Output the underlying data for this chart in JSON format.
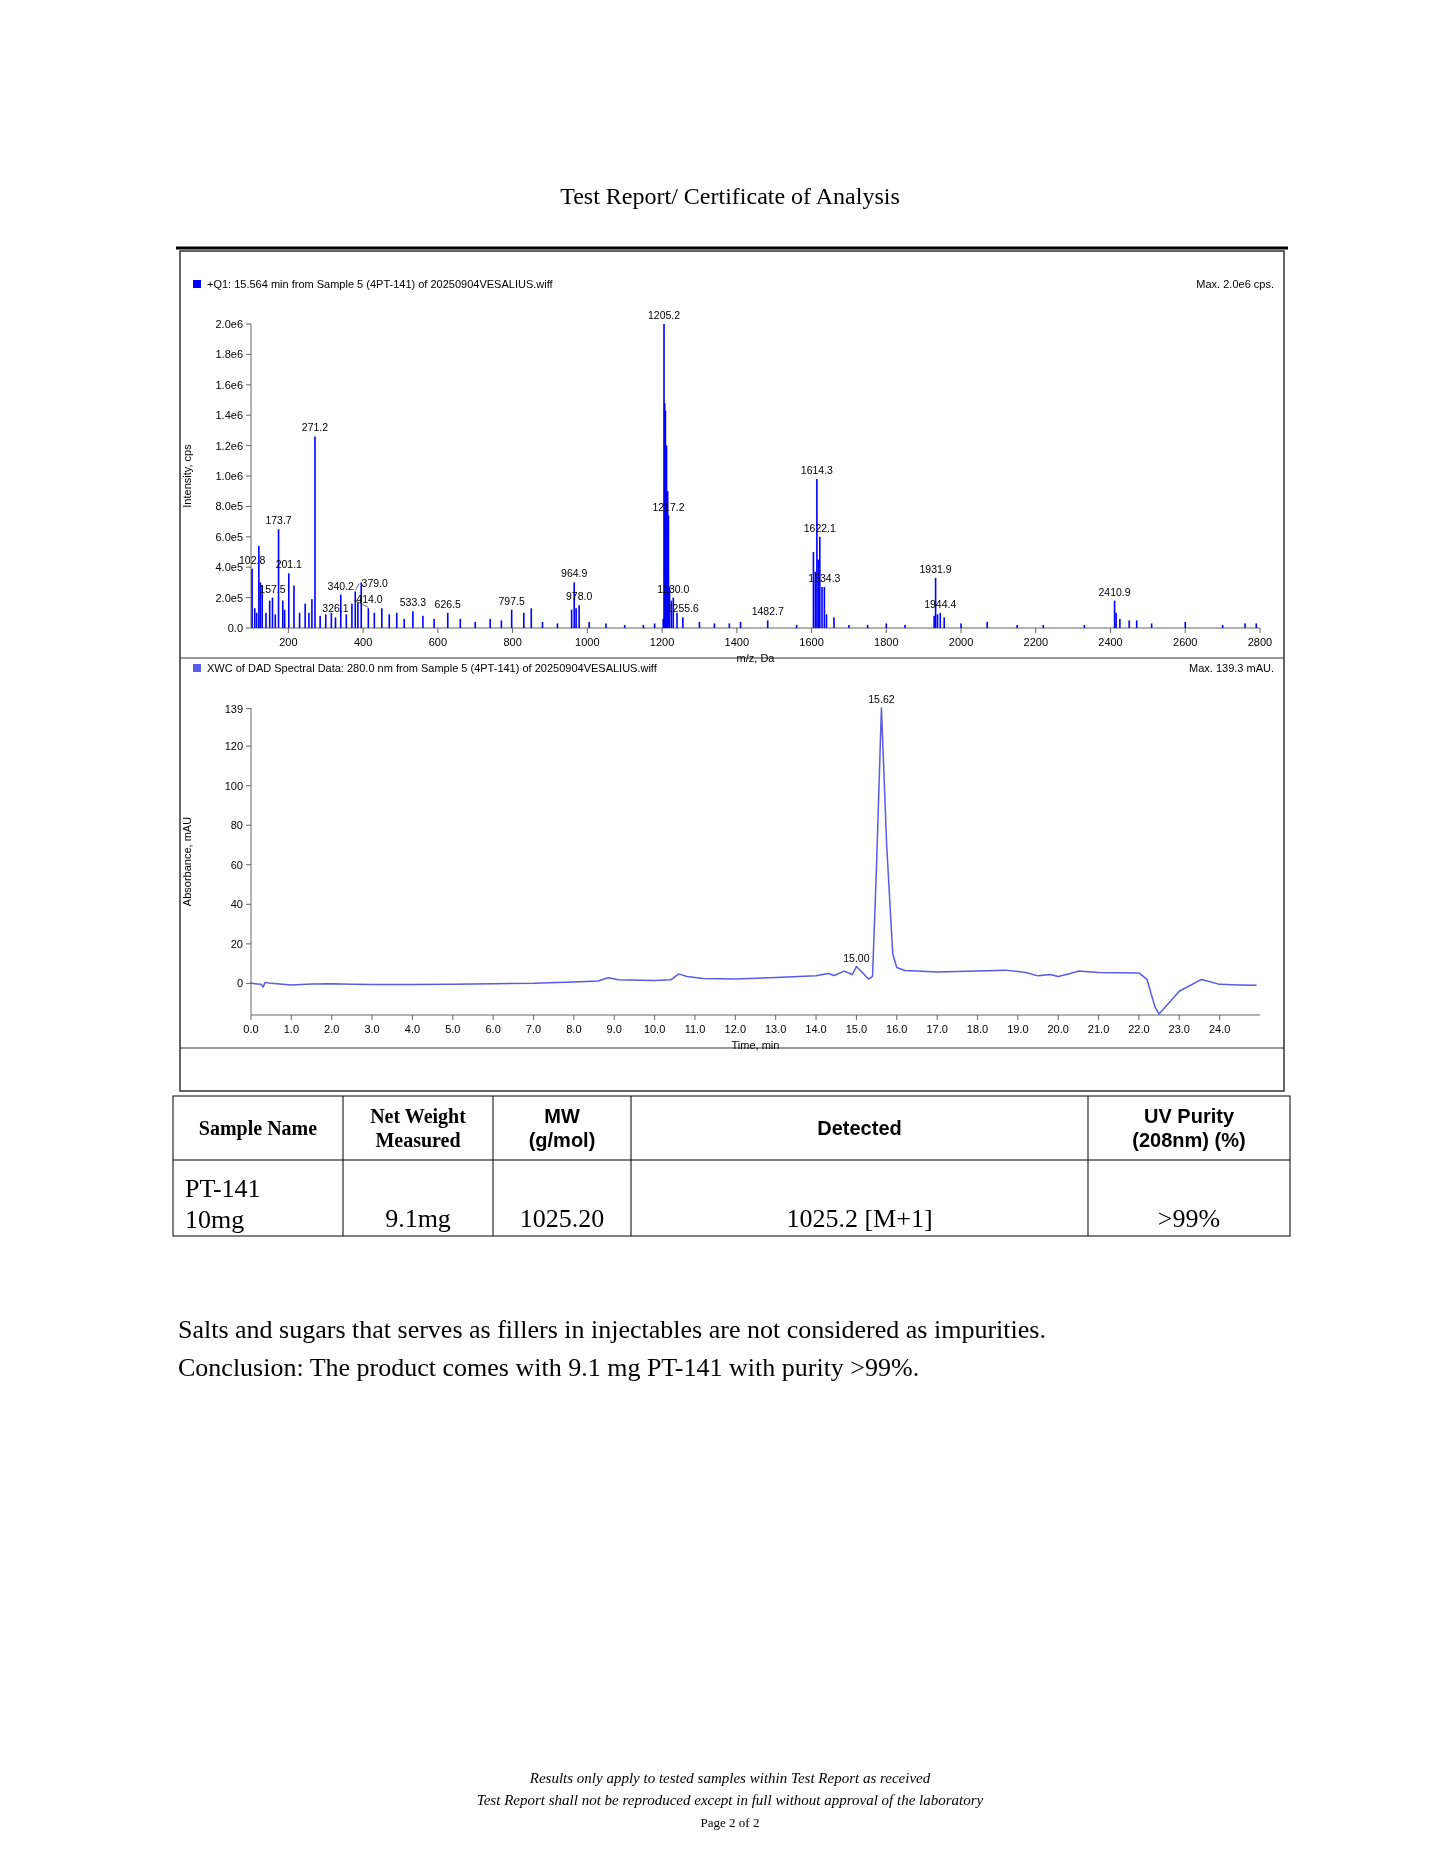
{
  "chart_data": [
    {
      "type": "bar",
      "title": "+Q1: 15.564 min from Sample 5 (4PT-141) of 20250904VESALIUS.wiff",
      "xlabel": "m/z, Da",
      "ylabel": "Intensity, cps",
      "color": "#0000ff",
      "x": [
        103,
        110,
        115,
        121,
        125,
        130,
        140,
        150,
        157.5,
        165,
        173.7,
        185,
        190,
        201.1,
        215,
        230,
        245,
        255,
        263,
        271.2,
        285,
        300,
        315,
        326.1,
        340.2,
        355,
        370,
        379,
        386,
        395,
        414,
        430,
        450,
        470,
        490,
        510,
        533.3,
        560,
        590,
        626.5,
        660,
        700,
        740,
        770,
        797.5,
        830,
        850,
        880,
        920,
        958,
        964.9,
        970,
        978,
        1005,
        1050,
        1100,
        1150,
        1180,
        1203,
        1205.2,
        1207,
        1209,
        1212,
        1215,
        1217.2,
        1220,
        1225,
        1230,
        1240,
        1255.6,
        1300,
        1340,
        1380,
        1410,
        1482.7,
        1560,
        1605,
        1610,
        1614.3,
        1618,
        1622.1,
        1628,
        1634.3,
        1640,
        1660,
        1700,
        1750,
        1800,
        1850,
        1928,
        1931.9,
        1937,
        1944.4,
        1955,
        2000,
        2070,
        2150,
        2220,
        2330,
        2410.9,
        2415,
        2425,
        2450,
        2470,
        2510,
        2600,
        2700,
        2760,
        2790
      ],
      "values": [
        390000,
        130000,
        100000,
        540000,
        300000,
        280000,
        100000,
        180000,
        200000,
        90000,
        650000,
        180000,
        120000,
        360000,
        280000,
        100000,
        160000,
        100000,
        190000,
        1260000,
        80000,
        90000,
        100000,
        70000,
        220000,
        90000,
        160000,
        240000,
        170000,
        300000,
        130000,
        100000,
        130000,
        90000,
        100000,
        60000,
        110000,
        80000,
        60000,
        100000,
        60000,
        40000,
        60000,
        50000,
        120000,
        100000,
        130000,
        40000,
        30000,
        120000,
        300000,
        130000,
        150000,
        40000,
        30000,
        20000,
        20000,
        30000,
        60000,
        2000000,
        1480000,
        1430000,
        1200000,
        900000,
        740000,
        270000,
        180000,
        200000,
        100000,
        70000,
        40000,
        30000,
        30000,
        40000,
        50000,
        20000,
        500000,
        370000,
        980000,
        450000,
        600000,
        270000,
        270000,
        90000,
        70000,
        20000,
        20000,
        30000,
        20000,
        80000,
        330000,
        90000,
        100000,
        70000,
        30000,
        40000,
        20000,
        20000,
        20000,
        180000,
        100000,
        60000,
        50000,
        50000,
        30000,
        40000,
        20000,
        30000,
        30000
      ],
      "xlim": [
        100,
        2800
      ],
      "xticks": [
        200,
        400,
        600,
        800,
        1000,
        1200,
        1400,
        1600,
        1800,
        2000,
        2200,
        2400,
        2600,
        2800
      ],
      "ylim": [
        0,
        2000000
      ],
      "yticks": [
        {
          "value": 0,
          "label": "0.0"
        },
        {
          "value": 200000,
          "label": "2.0e5"
        },
        {
          "value": 400000,
          "label": "4.0e5"
        },
        {
          "value": 600000,
          "label": "6.0e5"
        },
        {
          "value": 800000,
          "label": "8.0e5"
        },
        {
          "value": 1000000,
          "label": "1.0e6"
        },
        {
          "value": 1200000,
          "label": "1.2e6"
        },
        {
          "value": 1400000,
          "label": "1.4e6"
        },
        {
          "value": 1600000,
          "label": "1.6e6"
        },
        {
          "value": 1800000,
          "label": "1.8e6"
        },
        {
          "value": 2000000,
          "label": "2.0e6"
        }
      ],
      "annotations": [
        "Max. 2.0e6 cps.",
        {
          "text": "102.8",
          "x": 103,
          "y": 390000
        },
        {
          "text": "157.5",
          "x": 157.5,
          "y": 200000
        },
        {
          "text": "173.7",
          "x": 173.7,
          "y": 650000
        },
        {
          "text": "201.1",
          "x": 201.1,
          "y": 360000
        },
        {
          "text": "271.2",
          "x": 271.2,
          "y": 1260000
        },
        {
          "text": "326.1",
          "x": 326.1,
          "y": 70000
        },
        {
          "text": "340.2",
          "x": 340.2,
          "y": 220000
        },
        {
          "text": "379.0",
          "x": 379,
          "y": 240000
        },
        {
          "text": "414.0",
          "x": 414,
          "y": 130000
        },
        {
          "text": "533.3",
          "x": 533.3,
          "y": 110000
        },
        {
          "text": "626.5",
          "x": 626.5,
          "y": 100000
        },
        {
          "text": "797.5",
          "x": 797.5,
          "y": 120000
        },
        {
          "text": "964.9",
          "x": 964.9,
          "y": 300000
        },
        {
          "text": "978.0",
          "x": 978,
          "y": 150000
        },
        {
          "text": "1205.2",
          "x": 1205.2,
          "y": 2000000
        },
        {
          "text": "1217.2",
          "x": 1217.2,
          "y": 740000
        },
        {
          "text": "1230.0",
          "x": 1230,
          "y": 200000
        },
        {
          "text": "1255.6",
          "x": 1255.6,
          "y": 70000
        },
        {
          "text": "1482.7",
          "x": 1482.7,
          "y": 50000
        },
        {
          "text": "1614.3",
          "x": 1614.3,
          "y": 980000
        },
        {
          "text": "1622.1",
          "x": 1622.1,
          "y": 600000
        },
        {
          "text": "1634.3",
          "x": 1634.3,
          "y": 270000
        },
        {
          "text": "1931.9",
          "x": 1931.9,
          "y": 330000
        },
        {
          "text": "1944.4",
          "x": 1944.4,
          "y": 100000
        },
        {
          "text": "2410.9",
          "x": 2410.9,
          "y": 180000
        }
      ]
    },
    {
      "type": "line",
      "title": "XWC of DAD Spectral Data: 280.0 nm from Sample 5 (4PT-141) of 20250904VESALIUS.wiff",
      "xlabel": "Time, min",
      "ylabel": "Absorbance, mAU",
      "color": "#5a5ae6",
      "x": [
        0,
        0.25,
        0.3,
        0.35,
        0.5,
        1,
        1.5,
        2,
        2.5,
        3,
        4,
        5,
        6,
        7,
        8,
        8.6,
        8.85,
        9.1,
        10,
        10.4,
        10.6,
        10.8,
        11.2,
        12,
        13,
        14,
        14.3,
        14.45,
        14.7,
        14.9,
        15,
        15.1,
        15.3,
        15.4,
        15.5,
        15.62,
        15.75,
        15.9,
        16,
        16.2,
        16.5,
        17,
        18,
        18.7,
        19.2,
        19.5,
        19.8,
        20,
        20.3,
        20.5,
        21,
        22,
        22.2,
        22.4,
        22.5,
        23,
        23.55,
        24,
        24.5,
        24.9
      ],
      "values": [
        0,
        -0.5,
        -1.8,
        0.5,
        0,
        -0.8,
        -0.3,
        -0.2,
        -0.5,
        -0.6,
        -0.6,
        -0.5,
        -0.2,
        0,
        0.7,
        1.2,
        2.8,
        1.8,
        1.5,
        1.8,
        4.8,
        3.5,
        2.5,
        2.2,
        3,
        3.9,
        5,
        4,
        6.2,
        4.5,
        8.5,
        6.5,
        2.2,
        3.5,
        60,
        139.3,
        70,
        15,
        8,
        6.5,
        6.3,
        5.8,
        6.2,
        6.7,
        5.5,
        3.8,
        4.5,
        3.5,
        5,
        6.2,
        5.5,
        5.3,
        2,
        -12,
        -15.5,
        -4,
        2,
        -0.5,
        -0.8,
        -1
      ],
      "xlim": [
        0,
        25
      ],
      "xticks": [
        {
          "value": 0,
          "label": "0.0"
        },
        {
          "value": 1,
          "label": "1.0"
        },
        {
          "value": 2,
          "label": "2.0"
        },
        {
          "value": 3,
          "label": "3.0"
        },
        {
          "value": 4,
          "label": "4.0"
        },
        {
          "value": 5,
          "label": "5.0"
        },
        {
          "value": 6,
          "label": "6.0"
        },
        {
          "value": 7,
          "label": "7.0"
        },
        {
          "value": 8,
          "label": "8.0"
        },
        {
          "value": 9,
          "label": "9.0"
        },
        {
          "value": 10,
          "label": "10.0"
        },
        {
          "value": 11,
          "label": "11.0"
        },
        {
          "value": 12,
          "label": "12.0"
        },
        {
          "value": 13,
          "label": "13.0"
        },
        {
          "value": 14,
          "label": "14.0"
        },
        {
          "value": 15,
          "label": "15.0"
        },
        {
          "value": 16,
          "label": "16.0"
        },
        {
          "value": 17,
          "label": "17.0"
        },
        {
          "value": 18,
          "label": "18.0"
        },
        {
          "value": 19,
          "label": "19.0"
        },
        {
          "value": 20,
          "label": "20.0"
        },
        {
          "value": 21,
          "label": "21.0"
        },
        {
          "value": 22,
          "label": "22.0"
        },
        {
          "value": 23,
          "label": "23.0"
        },
        {
          "value": 24,
          "label": "24.0"
        }
      ],
      "ylim": [
        -16,
        139.3
      ],
      "yticks": [
        0,
        20,
        40,
        60,
        80,
        100,
        120,
        139
      ],
      "annotations": [
        "Max. 139.3 mAU.",
        {
          "text": "15.62",
          "x": 15.62,
          "y": 139.3
        },
        {
          "text": "15.00",
          "x": 15,
          "y": 8.5
        }
      ]
    },
    {
      "type": "other",
      "title": "Test Report/ Certificate of Analysis",
      "annotations": [
        "Sample Name",
        "Net Weight\nMeasured",
        "MW\n(g/mol)",
        "Detected",
        "UV Purity\n(208nm) (%)",
        "PT-141\n10mg",
        "9.1mg",
        "1025.20",
        "1025.2 [M+1]",
        ">99%",
        "Salts and sugars that serves as fillers in injectables are not considered as impurities.",
        "Conclusion: The product comes with 9.1 mg PT-141 with purity >99%.",
        "Results only apply to tested samples within Test Report as received",
        "Test Report shall not be reproduced except in full without approval of the laboratory",
        "Page 2 of 2"
      ]
    }
  ]
}
